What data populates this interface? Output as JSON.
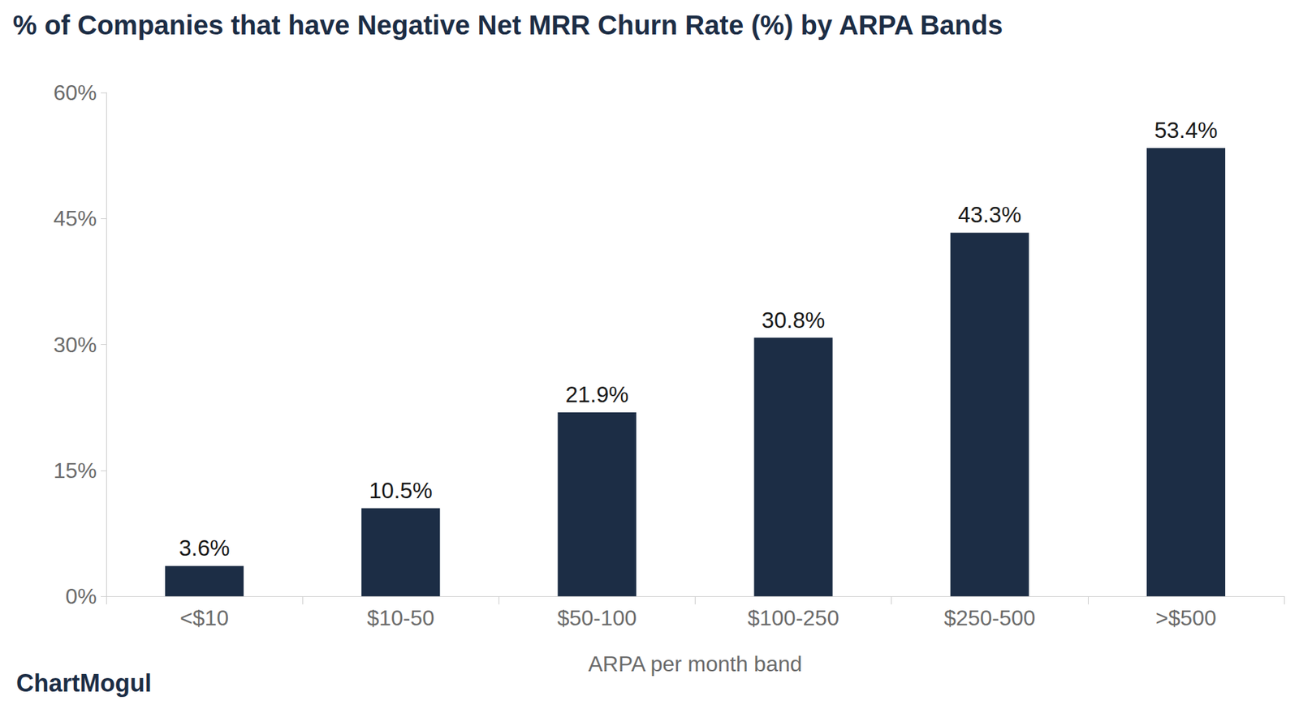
{
  "chart_data": {
    "type": "bar",
    "title": "% of Companies that have Negative Net MRR Churn Rate (%) by ARPA Bands",
    "x_label": "ARPA per month band",
    "annotations": [
      "ChartMogul"
    ],
    "categories": [
      "<$10",
      "$10-50",
      "$50-100",
      "$100-250",
      "$250-500",
      ">$500"
    ],
    "values": [
      3.6,
      10.5,
      21.9,
      30.8,
      43.3,
      53.4
    ],
    "value_labels": [
      "3.6%",
      "10.5%",
      "21.9%",
      "30.8%",
      "43.3%",
      "53.4%"
    ],
    "data_labels": true,
    "color": "#1c2d45",
    "ylim": [
      0,
      60
    ],
    "yticks": [
      {
        "value": 0,
        "label": "0%"
      },
      {
        "value": 15,
        "label": "15%"
      },
      {
        "value": 30,
        "label": "30%"
      },
      {
        "value": 45,
        "label": "45%"
      },
      {
        "value": 60,
        "label": "60%"
      }
    ],
    "grid": false
  }
}
